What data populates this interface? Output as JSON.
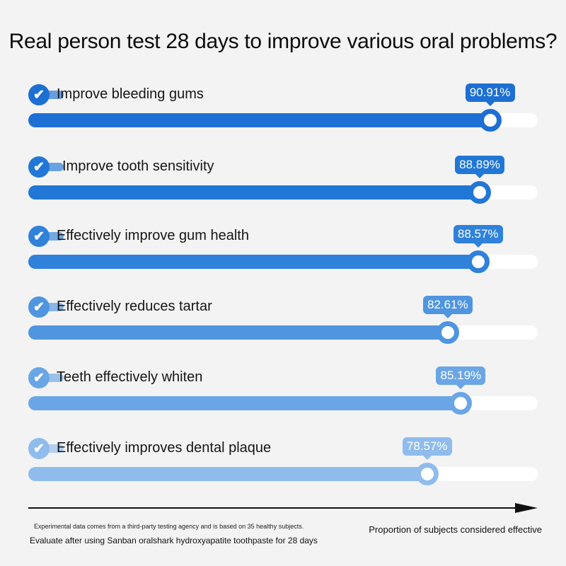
{
  "chart_data": {
    "type": "bar",
    "orientation": "horizontal",
    "title": "Real person test 28 days to improve various oral problems?",
    "xlabel": "Proportion of subjects considered effective",
    "xlim": [
      0,
      100
    ],
    "categories": [
      "Improve bleeding gums",
      "Improve tooth sensitivity",
      "Effectively improve gum health",
      "Effectively reduces tartar",
      "Teeth effectively whiten",
      "Effectively improves dental plaque"
    ],
    "values": [
      90.91,
      88.89,
      88.57,
      82.61,
      85.19,
      78.57
    ],
    "value_labels": [
      "90.91%",
      "88.89%",
      "88.57%",
      "82.61%",
      "85.19%",
      "78.57%"
    ],
    "bar_colors": [
      "#1d6fd3",
      "#2177d6",
      "#2f81da",
      "#4f95df",
      "#6aa6e5",
      "#8fbcec"
    ]
  },
  "footnotes": {
    "source": "Experimental data comes from a third-party testing agency and is based on 35 healthy subjects.",
    "condition": "Evaluate after using Sanban oralshark hydroxyapatite toothpaste for 28 days"
  },
  "icons": {
    "check": "check-circle-icon"
  },
  "colors": {
    "track": "#ffffff",
    "background": "#f3f3f4",
    "axis": "#111111"
  }
}
